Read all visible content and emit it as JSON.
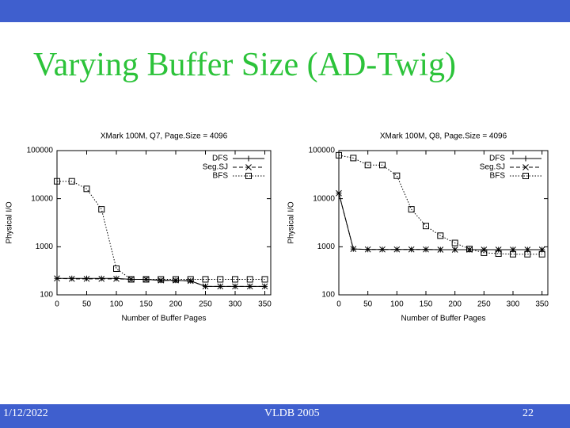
{
  "slide": {
    "title": "Varying Buffer Size (AD-Twig)",
    "date": "1/12/2022",
    "venue": "VLDB 2005",
    "page": "22"
  },
  "chart_data": [
    {
      "type": "line",
      "title": "XMark 100M, Q7, Page.Size = 4096",
      "x_label": "Number of Buffer Pages",
      "y_label": "Physical I/O",
      "log_y": true,
      "legend": "top-right",
      "xlim": [
        0,
        360
      ],
      "ylim": [
        100,
        100000
      ],
      "xticks": [
        0,
        50,
        100,
        150,
        200,
        250,
        300,
        350
      ],
      "yticks": [
        100,
        1000,
        10000,
        100000
      ],
      "x": [
        0,
        25,
        50,
        75,
        100,
        125,
        150,
        175,
        200,
        225,
        250,
        275,
        300,
        325,
        350
      ],
      "series": [
        {
          "name": "DFS",
          "color": "#000000",
          "marker": "plus",
          "dash": "solid",
          "values": [
            220,
            220,
            220,
            220,
            220,
            210,
            210,
            200,
            200,
            195,
            150,
            150,
            150,
            150,
            150
          ]
        },
        {
          "name": "Seg.SJ",
          "color": "#000000",
          "marker": "cross",
          "dash": "dashed",
          "values": [
            220,
            215,
            215,
            215,
            215,
            210,
            210,
            200,
            200,
            195,
            150,
            150,
            150,
            150,
            150
          ]
        },
        {
          "name": "BFS",
          "color": "#000000",
          "marker": "square",
          "dash": "dotted",
          "values": [
            23000,
            23000,
            16000,
            6000,
            350,
            210,
            210,
            210,
            210,
            210,
            210,
            210,
            210,
            210,
            210
          ]
        }
      ]
    },
    {
      "type": "line",
      "title": "XMark 100M, Q8, Page.Size = 4096",
      "x_label": "Number of Buffer Pages",
      "y_label": "Physical I/O",
      "log_y": true,
      "legend": "top-right",
      "xlim": [
        0,
        360
      ],
      "ylim": [
        100,
        100000
      ],
      "xticks": [
        0,
        50,
        100,
        150,
        200,
        250,
        300,
        350
      ],
      "yticks": [
        100,
        1000,
        10000,
        100000
      ],
      "x": [
        0,
        25,
        50,
        75,
        100,
        125,
        150,
        175,
        200,
        225,
        250,
        275,
        300,
        325,
        350
      ],
      "series": [
        {
          "name": "DFS",
          "color": "#000000",
          "marker": "plus",
          "dash": "solid",
          "values": [
            13000,
            900,
            880,
            880,
            880,
            880,
            880,
            870,
            870,
            870,
            870,
            870,
            870,
            870,
            870
          ]
        },
        {
          "name": "Seg.SJ",
          "color": "#000000",
          "marker": "cross",
          "dash": "dashed",
          "values": [
            13000,
            900,
            880,
            880,
            880,
            880,
            880,
            870,
            870,
            870,
            870,
            870,
            870,
            870,
            870
          ]
        },
        {
          "name": "BFS",
          "color": "#000000",
          "marker": "square",
          "dash": "dotted",
          "values": [
            80000,
            70000,
            50000,
            50000,
            30000,
            6000,
            2700,
            1700,
            1200,
            900,
            750,
            720,
            700,
            700,
            700
          ]
        }
      ]
    }
  ]
}
